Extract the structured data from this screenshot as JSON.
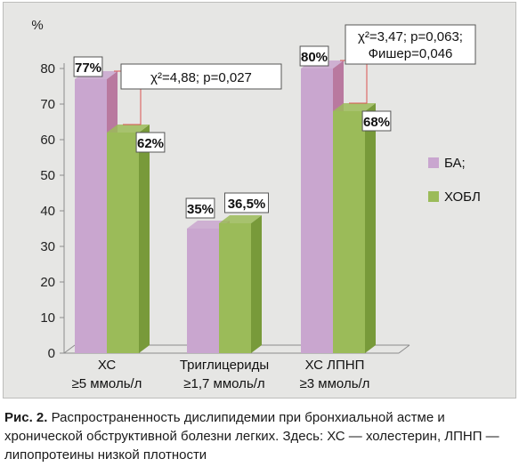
{
  "chart_data": {
    "type": "bar",
    "y_unit_label": "%",
    "ylim": [
      0,
      80
    ],
    "yticks": [
      0,
      10,
      20,
      30,
      40,
      50,
      60,
      70,
      80
    ],
    "categories": [
      [
        "ХС",
        "≥5 ммоль/л"
      ],
      [
        "Триглицериды",
        "≥1,7 ммоль/л"
      ],
      [
        "ХС ЛПНП",
        "≥3 ммоль/л"
      ]
    ],
    "series": [
      {
        "name": "БА;",
        "values": [
          77,
          35,
          80
        ],
        "labels": [
          "77%",
          "35%",
          "80%"
        ],
        "color": "#c9a6cf",
        "side_color": "#b9799f"
      },
      {
        "name": "ХОБЛ",
        "values": [
          62,
          36.5,
          68
        ],
        "labels": [
          "62%",
          "36,5%",
          "68%"
        ],
        "color": "#9bbb59",
        "side_color": "#789a3a"
      }
    ],
    "annotations": [
      {
        "category": 0,
        "lines": [
          "χ²=4,88; p=0,027"
        ]
      },
      {
        "category": 2,
        "lines": [
          "χ²=3,47; p=0,063;",
          "Фишер=0,046"
        ]
      }
    ],
    "grid": false,
    "legend_position": "right"
  },
  "caption": {
    "label": "Рис. 2.",
    "text": "Распространенность дислипидемии при бронхиальной астме и хронической обструктивной болезни легких. Здесь: ХС — холестерин, ЛПНП — липопротеины низкой плотности"
  }
}
